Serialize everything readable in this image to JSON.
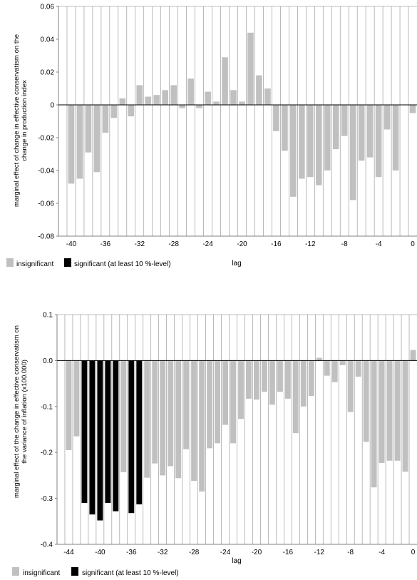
{
  "colors": {
    "insignificant": "#c0c0c0",
    "significant": "#000000",
    "grid": "#8c8c8c",
    "axis": "#808080"
  },
  "chart_data": [
    {
      "type": "bar",
      "title": "",
      "ylabel_line1": "marginal effect of change in effective conservatism on the",
      "ylabel_line2": "change in production index",
      "xlabel": "lag",
      "ylim": [
        -0.08,
        0.06
      ],
      "xlim": [
        -41,
        0
      ],
      "grid": "vertical",
      "yticks": [
        "0.06",
        "0.04",
        "0.02",
        "0",
        "-0.02",
        "-0.04",
        "-0.06",
        "-0.08"
      ],
      "xticks": [
        "-40",
        "-36",
        "-32",
        "-28",
        "-24",
        "-20",
        "-16",
        "-12",
        "-8",
        "-4",
        "0"
      ],
      "legend": [
        "insignificant",
        "significant (at least 10 %-level)"
      ],
      "legend_position": "bottom-left",
      "x": [
        -40,
        -39,
        -38,
        -37,
        -36,
        -35,
        -34,
        -33,
        -32,
        -31,
        -30,
        -29,
        -28,
        -27,
        -26,
        -25,
        -24,
        -23,
        -22,
        -21,
        -20,
        -19,
        -18,
        -17,
        -16,
        -15,
        -14,
        -13,
        -12,
        -11,
        -10,
        -9,
        -8,
        -7,
        -6,
        -5,
        -4,
        -3,
        -2,
        -1,
        0
      ],
      "values": [
        -0.048,
        -0.045,
        -0.029,
        -0.041,
        -0.017,
        -0.008,
        0.004,
        -0.007,
        0.012,
        0.005,
        0.006,
        0.009,
        0.012,
        -0.002,
        0.016,
        -0.002,
        0.008,
        0.002,
        0.029,
        0.009,
        0.002,
        0.044,
        0.018,
        0.01,
        -0.016,
        -0.028,
        -0.056,
        -0.045,
        -0.044,
        -0.049,
        -0.04,
        -0.027,
        -0.019,
        -0.058,
        -0.034,
        -0.032,
        -0.044,
        -0.015,
        -0.04,
        null,
        -0.005
      ],
      "significant": []
    },
    {
      "type": "bar",
      "title": "",
      "ylabel_line1": "marginal effect of the change in effective conservatism on",
      "ylabel_line2": "the variance of inflation (x100.000)",
      "xlabel": "lag",
      "ylim": [
        -0.4,
        0.1
      ],
      "xlim": [
        -45,
        0
      ],
      "grid": "vertical",
      "yticks": [
        "0.1",
        "0.0",
        "-0.1",
        "-0.2",
        "-0.3",
        "-0.4"
      ],
      "xticks": [
        "-44",
        "-40",
        "-36",
        "-32",
        "-28",
        "-24",
        "-20",
        "-16",
        "-12",
        "-8",
        "-4",
        "0"
      ],
      "legend": [
        "insignificant",
        "significant (at least 10 %-level)"
      ],
      "legend_position": "bottom-left",
      "x": [
        -44,
        -43,
        -42,
        -41,
        -40,
        -39,
        -38,
        -37,
        -36,
        -35,
        -34,
        -33,
        -32,
        -31,
        -30,
        -29,
        -28,
        -27,
        -26,
        -25,
        -24,
        -23,
        -22,
        -21,
        -20,
        -19,
        -18,
        -17,
        -16,
        -15,
        -14,
        -13,
        -12,
        -11,
        -10,
        -9,
        -8,
        -7,
        -6,
        -5,
        -4,
        -3,
        -2,
        -1,
        0
      ],
      "values": [
        -0.195,
        -0.165,
        -0.31,
        -0.335,
        -0.348,
        -0.31,
        -0.328,
        -0.243,
        -0.332,
        -0.313,
        -0.255,
        -0.224,
        -0.25,
        -0.23,
        -0.256,
        -0.193,
        -0.262,
        -0.285,
        -0.191,
        -0.18,
        -0.14,
        -0.18,
        -0.127,
        -0.083,
        -0.085,
        -0.068,
        -0.096,
        -0.068,
        -0.083,
        -0.158,
        -0.1,
        -0.077,
        0.006,
        -0.033,
        -0.047,
        -0.01,
        -0.112,
        -0.035,
        -0.177,
        -0.276,
        -0.223,
        -0.218,
        -0.218,
        -0.242,
        0.023
      ],
      "significant": [
        -42,
        -41,
        -40,
        -39,
        -38,
        -36,
        -35
      ]
    }
  ]
}
